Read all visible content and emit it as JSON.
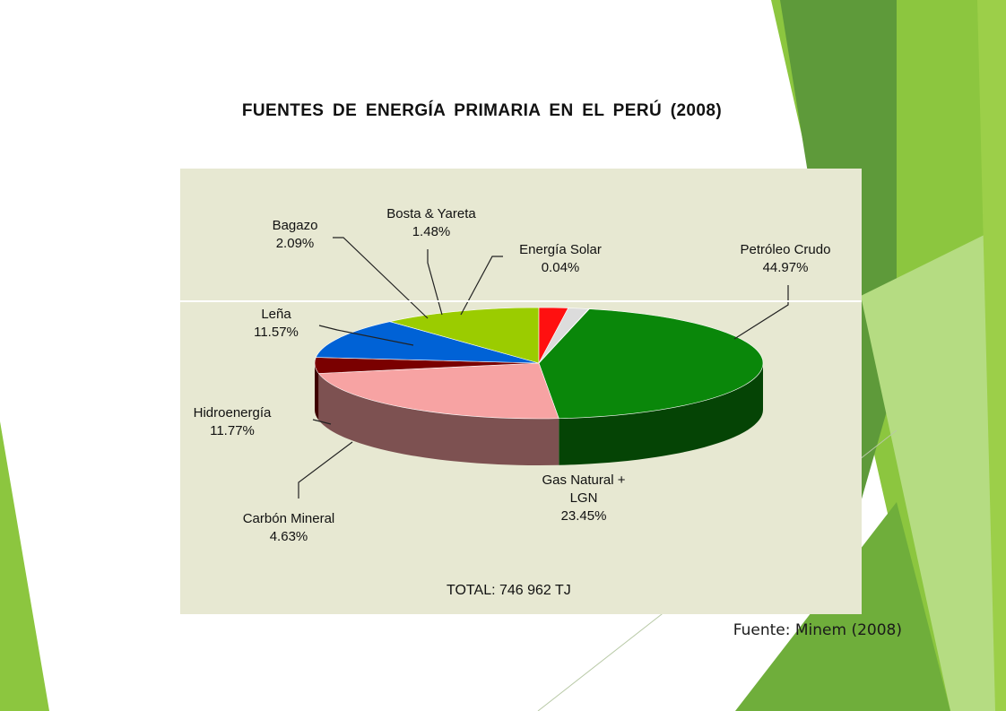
{
  "slide": {
    "title": "FUENTES DE ENERGÍA PRIMARIA EN EL PERÚ (2008)",
    "source": "Fuente: Minem (2008)"
  },
  "colors": {
    "panel": "#e7e8d2",
    "decoration_green_light": "#8cc63f",
    "decoration_green_dark": "#5e9a3a"
  },
  "chart_data": {
    "type": "pie",
    "style": "3d",
    "title": "",
    "total_label": "TOTAL:   746 962 TJ",
    "slices": [
      {
        "name": "Petróleo Crudo",
        "value": 44.97,
        "label": "44.97%",
        "color": "#0a870a",
        "side_color": "#054405"
      },
      {
        "name": "Gas Natural + LGN",
        "name_lines": [
          "Gas Natural +",
          "LGN"
        ],
        "value": 23.45,
        "label": "23.45%",
        "color": "#f7a3a3",
        "side_color": "#7d5151"
      },
      {
        "name": "Carbón Mineral",
        "value": 4.63,
        "label": "4.63%",
        "color": "#7a0000",
        "side_color": "#3d0000"
      },
      {
        "name": "Hidroenergía",
        "value": 11.77,
        "label": "11.77%",
        "color": "#0062d6",
        "side_color": "#002f6a"
      },
      {
        "name": "Leña",
        "value": 11.57,
        "label": "11.57%",
        "color": "#9bcc00",
        "side_color": "#4d6600"
      },
      {
        "name": "Bagazo",
        "value": 2.09,
        "label": "2.09%",
        "color": "#ff1010",
        "side_color": "#800000"
      },
      {
        "name": "Bosta & Yareta",
        "value": 1.48,
        "label": "1.48%",
        "color": "#dcdcdc",
        "side_color": "#8a8a8a"
      },
      {
        "name": "Energía Solar",
        "value": 0.04,
        "label": "0.04%",
        "color": "#f2f2f2",
        "side_color": "#999999"
      }
    ]
  }
}
